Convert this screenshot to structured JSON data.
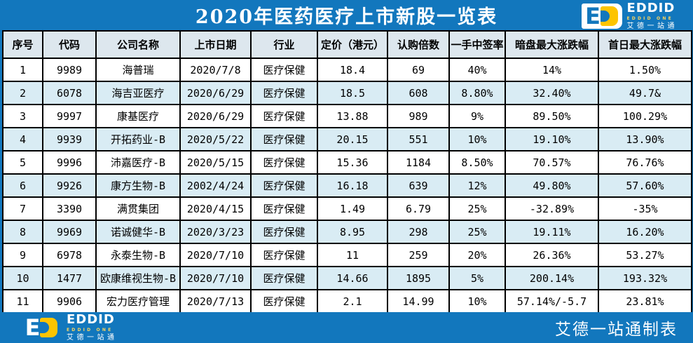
{
  "title": "2020年医药医疗上市新股一览表",
  "brand": {
    "monogram_e": "E",
    "name_en": "EDDID",
    "name_sub": "EDDID ONE",
    "name_cn": "艾德一站通",
    "colors": {
      "blue": "#1277bd",
      "yellow": "#fdc400",
      "row_alt": "#d9ecf4",
      "header_bg": "#dde7ee"
    }
  },
  "footer": {
    "credit": "艾德一站通制表"
  },
  "chart_data": {
    "type": "table",
    "title": "2020年医药医疗上市新股一览表",
    "columns": [
      "序号",
      "代码",
      "公司名称",
      "上市日期",
      "行业",
      "定价（港元）",
      "认购倍数",
      "一手中签率",
      "暗盘最大涨跌幅",
      "首日最大涨跌幅"
    ],
    "rows": [
      [
        "1",
        "9989",
        "海普瑞",
        "2020/7/8",
        "医疗保健",
        "18.4",
        "69",
        "40%",
        "14%",
        "1.50%"
      ],
      [
        "2",
        "6078",
        "海吉亚医疗",
        "2020/6/29",
        "医疗保健",
        "18.5",
        "608",
        "8.80%",
        "32.40%",
        "49.7&"
      ],
      [
        "3",
        "9997",
        "康基医疗",
        "2020/6/29",
        "医疗保健",
        "13.88",
        "989",
        "9%",
        "89.50%",
        "100.29%"
      ],
      [
        "4",
        "9939",
        "开拓药业-B",
        "2020/5/22",
        "医疗保健",
        "20.15",
        "551",
        "10%",
        "19.10%",
        "13.90%"
      ],
      [
        "5",
        "9996",
        "沛嘉医疗-B",
        "2020/5/15",
        "医疗保健",
        "15.36",
        "1184",
        "8.50%",
        "70.57%",
        "76.76%"
      ],
      [
        "6",
        "9926",
        "康方生物-B",
        "2002/4/24",
        "医疗保健",
        "16.18",
        "639",
        "12%",
        "49.80%",
        "57.60%"
      ],
      [
        "7",
        "3390",
        "满贯集团",
        "2020/4/15",
        "医疗保健",
        "1.49",
        "6.79",
        "25%",
        "-32.89%",
        "-35%"
      ],
      [
        "8",
        "9969",
        "诺诚健华-B",
        "2020/3/23",
        "医疗保健",
        "8.95",
        "298",
        "25%",
        "19.11%",
        "16.20%"
      ],
      [
        "9",
        "6978",
        "永泰生物-B",
        "2020/7/10",
        "医疗保健",
        "11",
        "259",
        "20%",
        "26.36%",
        "53.27%"
      ],
      [
        "10",
        "1477",
        "欧康维视生物-B",
        "2020/7/10",
        "医疗保健",
        "14.66",
        "1895",
        "5%",
        "200.14%",
        "193.32%"
      ],
      [
        "11",
        "9906",
        "宏力医疗管理",
        "2020/7/13",
        "医疗保健",
        "2.1",
        "14.99",
        "10%",
        "57.14%/-5.7",
        "23.81%"
      ]
    ]
  }
}
